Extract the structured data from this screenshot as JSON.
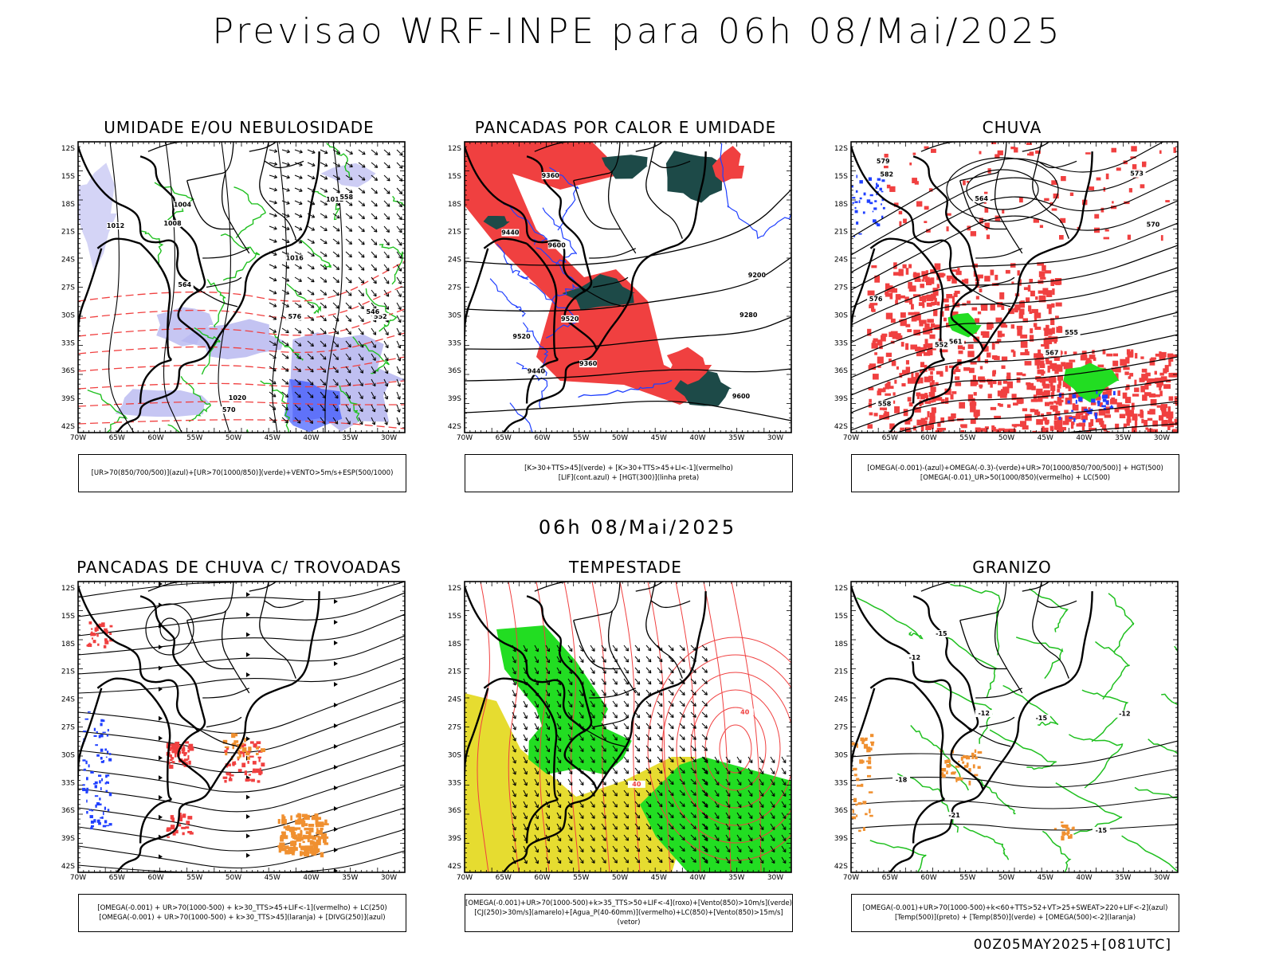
{
  "header": {
    "title": "Previsao WRF-INPE  para 06h 08/Mai/2025",
    "subtitle": "06h 08/Mai/2025",
    "run_info": "00Z05MAY2025+[081UTC]"
  },
  "axes": {
    "lat_labels": [
      "12S",
      "15S",
      "18S",
      "21S",
      "24S",
      "27S",
      "30S",
      "33S",
      "36S",
      "39S",
      "42S"
    ],
    "lon_labels": [
      "70W",
      "65W",
      "60W",
      "55W",
      "50W",
      "45W",
      "40W",
      "35W",
      "30W"
    ]
  },
  "panels": [
    {
      "id": "umidade",
      "title": "UMIDADE E/OU NEBULOSIDADE",
      "legend": [
        "[UR>70(850/700/500)](azul)+[UR>70(1000/850)](verde)+VENTO>5m/s+ESP(500/1000)"
      ],
      "contour_labels": [
        "1012",
        "1008",
        "1016",
        "1020",
        "1012",
        "570",
        "576",
        "564",
        "558",
        "552",
        "546",
        "1004"
      ]
    },
    {
      "id": "pancadas-calor",
      "title": "PANCADAS POR CALOR E UMIDADE",
      "legend": [
        "[K>30+TTS>45](verde)  +  [K>30+TTS>45+LI<-1](vermelho)",
        "[LIF](cont.azul)  +  [HGT(300)](linha preta)"
      ],
      "contour_labels": [
        "9600",
        "9520",
        "9440",
        "9360",
        "9280",
        "9200",
        "9600",
        "9520",
        "9440",
        "9360"
      ]
    },
    {
      "id": "chuva",
      "title": "CHUVA",
      "legend": [
        "[OMEGA(-0.001)-(azul)+OMEGA(-0.3)-(verde)+UR>70(1000/850/700/500)]  +  HGT(500)",
        "[OMEGA(-0.01)_UR>50(1000/850)(vermelho)  +  LC(500)"
      ],
      "contour_labels": [
        "582",
        "579",
        "576",
        "573",
        "570",
        "567",
        "564",
        "561",
        "558",
        "555",
        "552"
      ]
    },
    {
      "id": "trovoadas",
      "title": "PANCADAS DE CHUVA C/ TROVOADAS",
      "legend": [
        "[OMEGA(-0.001)  +  UR>70(1000-500)  +  k>30_TTS>45+LIF<-1](vermelho)  +  LC(250)",
        "[OMEGA(-0.001)  +  UR>70(1000-500)  +  k>30_TTS>45](laranja)  +  [DIVG(250)](azul)"
      ],
      "contour_labels": []
    },
    {
      "id": "tempestade",
      "title": "TEMPESTADE",
      "legend": [
        "[OMEGA(-0.001)+UR>70(1000-500)+k>35_TTS>50+LIF<-4](roxo)+[Vento(850)>10m/s](verde)",
        "[CJ(250)>30m/s](amarelo)+[Agua_P(40-60mm)](vermelho)+LC(850)+[Vento(850)>15m/s](vetor)"
      ],
      "contour_labels": [
        "40",
        "40"
      ]
    },
    {
      "id": "granizo",
      "title": "GRANIZO",
      "legend": [
        "[OMEGA(-0.001)+UR>70(1000-500)+k<60+TTS>52+VT>25+SWEAT>220+LIF<-2](azul)",
        "[Temp(500)](preto)  +  [Temp(850)](verde)  +  [OMEGA(500)<-2](laranja)"
      ],
      "contour_labels": [
        "-15",
        "-12",
        "-12",
        "-15",
        "-18",
        "-12",
        "-15",
        "-21"
      ]
    }
  ],
  "colors": {
    "red": "#f04040",
    "green": "#20c020",
    "bright_green": "#22dd22",
    "blue": "#2040ff",
    "light_purple": "#b8b8f0",
    "dark_teal": "#1d4a48",
    "orange": "#f09030",
    "yellow": "#e6dc30",
    "black": "#000000"
  }
}
